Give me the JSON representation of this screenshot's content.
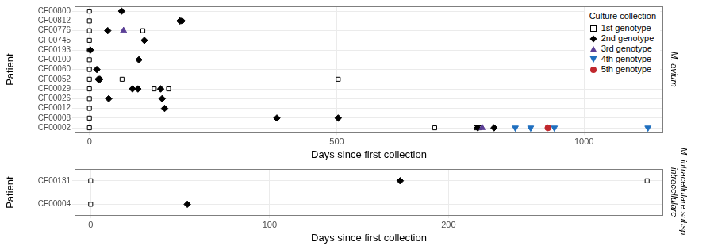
{
  "chart_data": [
    {
      "type": "scatter",
      "title": "M. avium",
      "x_label": "Days since first collection",
      "y_label": "Patient",
      "categories": [
        "CF00800",
        "CF00812",
        "CF00776",
        "CF00745",
        "CF00193",
        "CF00100",
        "CF00060",
        "CF00052",
        "CF00029",
        "CF00026",
        "CF00012",
        "CF00008",
        "CF00002"
      ],
      "xlim": [
        -30,
        1160
      ],
      "xticks": [
        0,
        500,
        1000
      ],
      "grid": true,
      "legend": "upper right",
      "legend_title": "Culture collection",
      "series": [
        {
          "name": "1st genotype",
          "color": "#000000",
          "marker": "square-open",
          "x": [
            0,
            65,
            0,
            0,
            108,
            0,
            0,
            0,
            0,
            0,
            66,
            503,
            0,
            131,
            160,
            0,
            0,
            0,
            0,
            698,
            782,
            788
          ],
          "y": [
            "CF00800",
            "CF00800",
            "CF00812",
            "CF00776",
            "CF00776",
            "CF00745",
            "CF00193",
            "CF00100",
            "CF00060",
            "CF00052",
            "CF00052",
            "CF00052",
            "CF00029",
            "CF00029",
            "CF00029",
            "CF00026",
            "CF00012",
            "CF00008",
            "CF00002",
            "CF00002",
            "CF00002",
            "CF00002"
          ]
        },
        {
          "name": "2nd genotype",
          "color": "#000000",
          "marker": "diamond",
          "x": [
            65,
            183,
            187,
            37,
            111,
            2,
            100,
            15,
            18,
            21,
            87,
            98,
            144,
            39,
            147,
            152,
            379,
            503,
            785,
            818
          ],
          "y": [
            "CF00800",
            "CF00812",
            "CF00812",
            "CF00776",
            "CF00745",
            "CF00193",
            "CF00100",
            "CF00060",
            "CF00052",
            "CF00052",
            "CF00029",
            "CF00029",
            "CF00029",
            "CF00026",
            "CF00026",
            "CF00012",
            "CF00008",
            "CF00008",
            "CF00002",
            "CF00002"
          ]
        },
        {
          "name": "3rd genotype",
          "color": "#5b3f96",
          "marker": "triangle-up",
          "x": [
            69,
            794
          ],
          "y": [
            "CF00776",
            "CF00002"
          ]
        },
        {
          "name": "4th genotype",
          "color": "#1f6fbf",
          "marker": "triangle-down",
          "x": [
            861,
            892,
            940,
            1129
          ],
          "y": [
            "CF00002",
            "CF00002",
            "CF00002",
            "CF00002"
          ]
        },
        {
          "name": "5th genotype",
          "color": "#c0272d",
          "marker": "circle",
          "x": [
            927
          ],
          "y": [
            "CF00002"
          ]
        }
      ]
    },
    {
      "type": "scatter",
      "title": "M. intracellulare subsp. intracellulare",
      "x_label": "Days since first collection",
      "y_label": "Patient",
      "categories": [
        "CF00131",
        "CF00004"
      ],
      "xlim": [
        -9,
        320
      ],
      "xticks": [
        0,
        100,
        200
      ],
      "grid": true,
      "series": [
        {
          "name": "1st genotype",
          "color": "#000000",
          "marker": "square-open",
          "x": [
            0,
            311,
            0
          ],
          "y": [
            "CF00131",
            "CF00131",
            "CF00004"
          ]
        },
        {
          "name": "2nd genotype",
          "color": "#000000",
          "marker": "diamond",
          "x": [
            173,
            54
          ],
          "y": [
            "CF00131",
            "CF00004"
          ]
        }
      ]
    }
  ]
}
